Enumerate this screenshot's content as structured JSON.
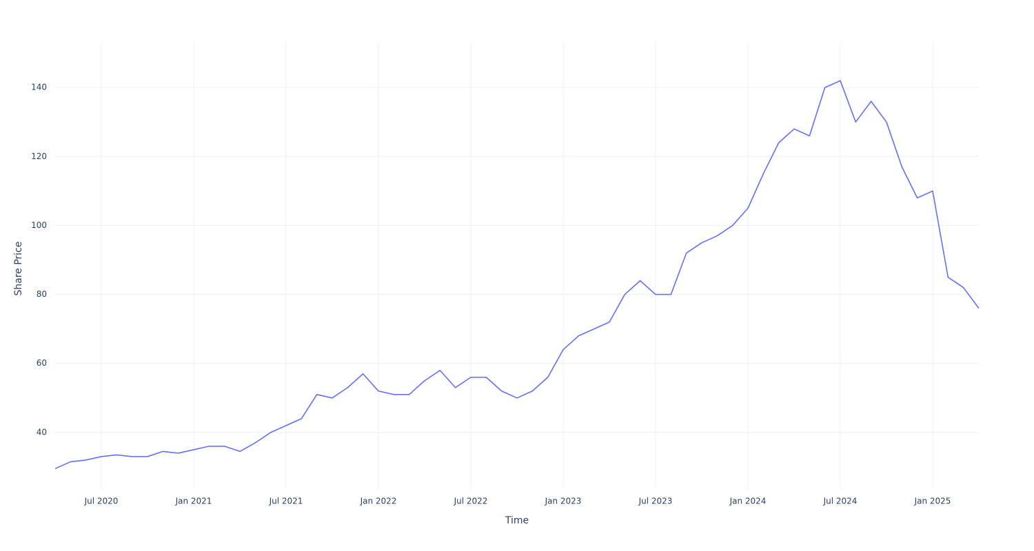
{
  "chart_data": {
    "type": "line",
    "x_label": "Time",
    "y_label": "Share Price",
    "x": [
      "2020-04",
      "2020-05",
      "2020-06",
      "2020-07",
      "2020-08",
      "2020-09",
      "2020-10",
      "2020-11",
      "2020-12",
      "2021-01",
      "2021-02",
      "2021-03",
      "2021-04",
      "2021-05",
      "2021-06",
      "2021-07",
      "2021-08",
      "2021-09",
      "2021-10",
      "2021-11",
      "2021-12",
      "2022-01",
      "2022-02",
      "2022-03",
      "2022-04",
      "2022-05",
      "2022-06",
      "2022-07",
      "2022-08",
      "2022-09",
      "2022-10",
      "2022-11",
      "2022-12",
      "2023-01",
      "2023-02",
      "2023-03",
      "2023-04",
      "2023-05",
      "2023-06",
      "2023-07",
      "2023-08",
      "2023-09",
      "2023-10",
      "2023-11",
      "2023-12",
      "2024-01",
      "2024-02",
      "2024-03",
      "2024-04",
      "2024-05",
      "2024-06",
      "2024-07",
      "2024-08",
      "2024-09",
      "2024-10",
      "2024-11",
      "2024-12",
      "2025-01",
      "2025-02",
      "2025-03",
      "2025-04"
    ],
    "series": [
      {
        "name": "Share Price",
        "color": "#636efa",
        "values": [
          29.5,
          31.5,
          32,
          33,
          33.5,
          33,
          33,
          34.5,
          34,
          35,
          36,
          36,
          34.5,
          37,
          40,
          42,
          44,
          51,
          50,
          53,
          57,
          52,
          51,
          51,
          55,
          58,
          53,
          56,
          56,
          52,
          50,
          52,
          56,
          64,
          68,
          70,
          72,
          80,
          84,
          80,
          80,
          92,
          95,
          97,
          100,
          105,
          115,
          124,
          128,
          126,
          140,
          142,
          130,
          136,
          130,
          117,
          108,
          110,
          85,
          82,
          76
        ]
      }
    ],
    "xlim": [
      "2020-04",
      "2025-04"
    ],
    "xticks": [
      {
        "value": "2020-07",
        "label": "Jul 2020"
      },
      {
        "value": "2021-01",
        "label": "Jan 2021"
      },
      {
        "value": "2021-07",
        "label": "Jul 2021"
      },
      {
        "value": "2022-01",
        "label": "Jan 2022"
      },
      {
        "value": "2022-07",
        "label": "Jul 2022"
      },
      {
        "value": "2023-01",
        "label": "Jan 2023"
      },
      {
        "value": "2023-07",
        "label": "Jul 2023"
      },
      {
        "value": "2024-01",
        "label": "Jan 2024"
      },
      {
        "value": "2024-07",
        "label": "Jul 2024"
      },
      {
        "value": "2025-01",
        "label": "Jan 2025"
      }
    ],
    "ylim": [
      23.6,
      153.4
    ],
    "yticks": [
      40,
      60,
      80,
      100,
      120,
      140
    ],
    "grid": true
  }
}
